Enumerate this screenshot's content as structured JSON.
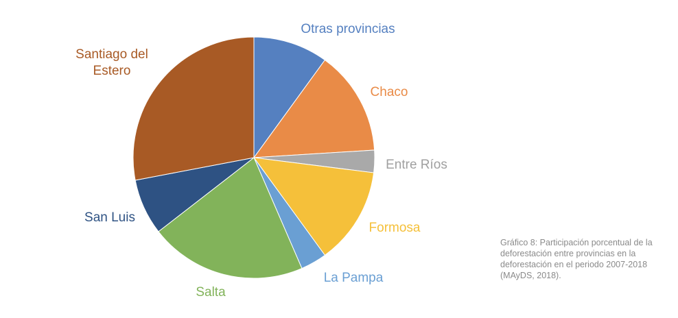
{
  "chart_data": {
    "type": "pie",
    "categories": [
      "Otras provincias",
      "Chaco",
      "Entre Ríos",
      "Formosa",
      "La Pampa",
      "Salta",
      "San Luis",
      "Santiago del Estero"
    ],
    "values": [
      10,
      14,
      3,
      13,
      3.5,
      21,
      7.5,
      28
    ],
    "colors": [
      "#5580c0",
      "#e98b47",
      "#a9a9a9",
      "#f5c03a",
      "#6a9fd3",
      "#82b35a",
      "#2e5283",
      "#a85a25"
    ],
    "caption": "Gráfico 8: Participación porcentual de la deforestación entre provincias en la deforestación en el periodo 2007-2018 (MAyDS, 2018)."
  }
}
